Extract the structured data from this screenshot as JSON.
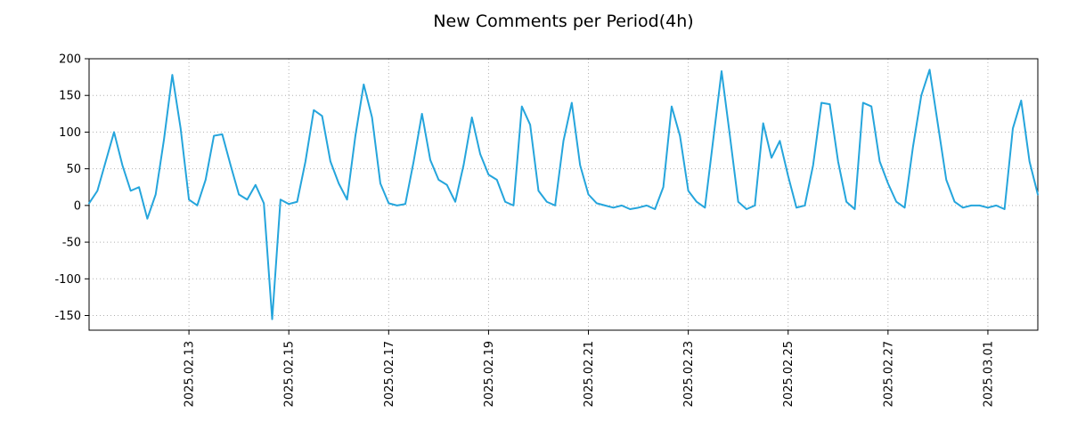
{
  "chart_data": {
    "type": "line",
    "title": "New Comments per Period(4h)",
    "series": [
      {
        "name": "new comments",
        "x_start": "2025-02-11 00:00",
        "x_interval_hours": 4,
        "values": [
          3,
          20,
          60,
          100,
          55,
          20,
          25,
          -18,
          15,
          90,
          178,
          105,
          8,
          0,
          35,
          95,
          97,
          55,
          15,
          8,
          28,
          3,
          -155,
          8,
          2,
          5,
          60,
          130,
          122,
          60,
          30,
          8,
          95,
          165,
          120,
          30,
          3,
          0,
          2,
          60,
          125,
          62,
          35,
          28,
          5,
          55,
          120,
          70,
          42,
          35,
          5,
          0,
          135,
          110,
          20,
          5,
          0,
          88,
          140,
          55,
          15,
          3,
          0,
          -3,
          0,
          -5,
          -3,
          0,
          -5,
          25,
          135,
          95,
          20,
          5,
          -3,
          90,
          183,
          95,
          5,
          -5,
          0,
          112,
          65,
          88,
          40,
          -3,
          0,
          55,
          140,
          138,
          60,
          5,
          -5,
          140,
          135,
          60,
          30,
          5,
          -3,
          80,
          150,
          185,
          110,
          35,
          5,
          -3,
          0,
          0,
          -3,
          0,
          -5,
          105,
          143,
          60,
          15
        ]
      }
    ],
    "x_ticks": [
      {
        "index": 12,
        "label": "2025.02.13"
      },
      {
        "index": 24,
        "label": "2025.02.15"
      },
      {
        "index": 36,
        "label": "2025.02.17"
      },
      {
        "index": 48,
        "label": "2025.02.19"
      },
      {
        "index": 60,
        "label": "2025.02.21"
      },
      {
        "index": 72,
        "label": "2025.02.23"
      },
      {
        "index": 84,
        "label": "2025.02.25"
      },
      {
        "index": 96,
        "label": "2025.02.27"
      },
      {
        "index": 108,
        "label": "2025.03.01"
      }
    ],
    "y_ticks": [
      200,
      150,
      100,
      50,
      0,
      -50,
      -100,
      -150
    ],
    "ylim": [
      -170,
      200
    ],
    "xlabel": "",
    "ylabel": "",
    "grid": "dotted",
    "legend": "none",
    "line_color": "#25a5dc",
    "grid_color": "#b0b0b0",
    "axis_color": "#000000",
    "background": "#ffffff"
  }
}
